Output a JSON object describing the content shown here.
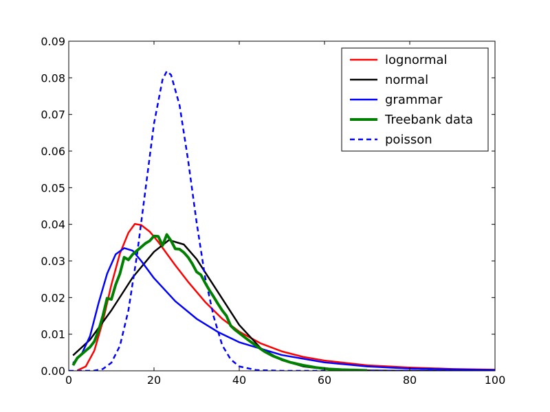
{
  "chart_data": {
    "type": "line",
    "title": "",
    "xlabel": "",
    "ylabel": "",
    "xlim": [
      0,
      100
    ],
    "ylim": [
      0,
      0.09
    ],
    "x_ticks": [
      0,
      20,
      40,
      60,
      80,
      100
    ],
    "x_tick_labels": [
      "0",
      "20",
      "40",
      "60",
      "80",
      "100"
    ],
    "y_ticks": [
      0,
      0.01,
      0.02,
      0.03,
      0.04,
      0.05,
      0.06,
      0.07,
      0.08,
      0.09
    ],
    "y_tick_labels": [
      "0.00",
      "0.01",
      "0.02",
      "0.03",
      "0.04",
      "0.05",
      "0.06",
      "0.07",
      "0.08",
      "0.09"
    ],
    "grid": false,
    "legend_position": "top-right",
    "series": [
      {
        "name": "lognormal",
        "color": "#ff0000",
        "style": "solid",
        "x": [
          2,
          4,
          6,
          8,
          10,
          12,
          14,
          15.5,
          17,
          19,
          21,
          23,
          25,
          28,
          32,
          36,
          40,
          45,
          50,
          55,
          60,
          70,
          80,
          90,
          100
        ],
        "y": [
          0.0001,
          0.0012,
          0.0055,
          0.0135,
          0.0235,
          0.032,
          0.0377,
          0.0401,
          0.0398,
          0.038,
          0.0352,
          0.032,
          0.0288,
          0.0243,
          0.0188,
          0.0142,
          0.0107,
          0.0075,
          0.0053,
          0.0038,
          0.0028,
          0.0015,
          0.0009,
          0.0005,
          0.0003
        ]
      },
      {
        "name": "normal",
        "color": "#000000",
        "style": "solid",
        "x": [
          1,
          5,
          10,
          15,
          20,
          23.5,
          27,
          30,
          35,
          40,
          45,
          50,
          55,
          60,
          65,
          70,
          80,
          100
        ],
        "y": [
          0.0042,
          0.0085,
          0.0165,
          0.0255,
          0.0325,
          0.0357,
          0.0345,
          0.0305,
          0.0215,
          0.0125,
          0.0062,
          0.0029,
          0.0012,
          0.0005,
          0.0002,
          0.0001,
          0.0,
          0.0
        ]
      },
      {
        "name": "grammar",
        "color": "#0000ff",
        "style": "solid",
        "x": [
          1,
          3,
          5,
          7,
          9,
          11,
          13,
          15,
          17,
          20,
          25,
          30,
          35,
          40,
          50,
          60,
          70,
          80,
          100
        ],
        "y": [
          0.0021,
          0.0045,
          0.0095,
          0.0185,
          0.0265,
          0.0318,
          0.0335,
          0.0328,
          0.03,
          0.0253,
          0.019,
          0.0142,
          0.0106,
          0.0078,
          0.0043,
          0.0023,
          0.0012,
          0.0006,
          0.0002
        ]
      },
      {
        "name": "Treebank data",
        "color": "#008000",
        "style": "solid-thick",
        "x": [
          1,
          2,
          3,
          4,
          5,
          6,
          7,
          8,
          9,
          10,
          11,
          12,
          13,
          14,
          15,
          16,
          17,
          18,
          19,
          20,
          21,
          22,
          23,
          24,
          25,
          26,
          27,
          28,
          29,
          30,
          31,
          32,
          33,
          34,
          35,
          36,
          37,
          38,
          39,
          40,
          42,
          44,
          46,
          48,
          50,
          52,
          55,
          58,
          61,
          64,
          67,
          70
        ],
        "y": [
          0.0015,
          0.0035,
          0.0045,
          0.0055,
          0.0065,
          0.008,
          0.011,
          0.015,
          0.0198,
          0.0195,
          0.0235,
          0.0265,
          0.031,
          0.0303,
          0.0318,
          0.0328,
          0.0338,
          0.0348,
          0.0355,
          0.0368,
          0.0367,
          0.0342,
          0.0372,
          0.0355,
          0.0333,
          0.0332,
          0.0323,
          0.031,
          0.0292,
          0.027,
          0.0262,
          0.024,
          0.022,
          0.0202,
          0.0183,
          0.0165,
          0.015,
          0.0123,
          0.0112,
          0.0103,
          0.0085,
          0.0068,
          0.0052,
          0.004,
          0.0031,
          0.0023,
          0.0015,
          0.0009,
          0.0005,
          0.0003,
          0.0002,
          0.0001
        ]
      },
      {
        "name": "poisson",
        "color": "#0000ff",
        "style": "dashed",
        "x": [
          0,
          4,
          6,
          8,
          10,
          12,
          14,
          16,
          18,
          20,
          22,
          23,
          24,
          26,
          28,
          30,
          32,
          34,
          36,
          38,
          40,
          44,
          50,
          100
        ],
        "y": [
          0.0,
          0.0,
          5e-05,
          0.0005,
          0.0022,
          0.0068,
          0.0165,
          0.0315,
          0.0495,
          0.0675,
          0.0795,
          0.0818,
          0.0808,
          0.0725,
          0.0575,
          0.0405,
          0.0255,
          0.0148,
          0.007,
          0.0031,
          0.0012,
          0.0002,
          0.0,
          0.0
        ]
      }
    ]
  }
}
